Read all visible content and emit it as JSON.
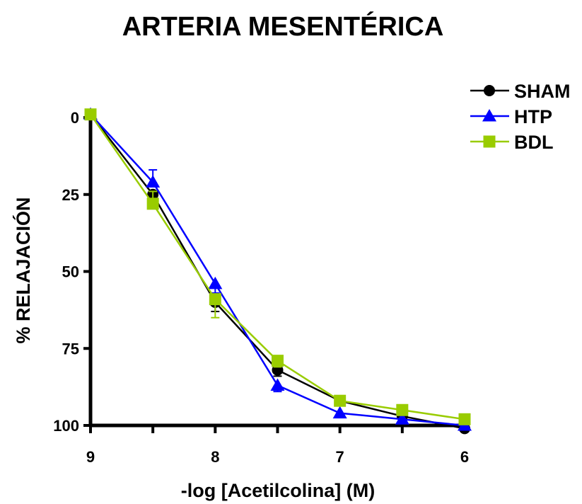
{
  "chart_data": {
    "type": "line",
    "title": "ARTERIA MESENTÉRICA",
    "xlabel": "-log [Acetilcolina] (M)",
    "ylabel": "% RELAJACIÓN",
    "x_ticks": [
      "9",
      "8",
      "7",
      "6"
    ],
    "y_ticks": [
      "0",
      "25",
      "50",
      "75",
      "100"
    ],
    "xlim": [
      9,
      6
    ],
    "ylim": [
      0,
      100
    ],
    "y_inverted": true,
    "grid": false,
    "legend_position": "top-right",
    "x": [
      9,
      8.5,
      8,
      7.5,
      7,
      6.5,
      6
    ],
    "series": [
      {
        "name": "SHAM",
        "marker": "circle",
        "color": "#000000",
        "values": [
          -1,
          25,
          60,
          82,
          92,
          97,
          101
        ],
        "error": [
          0,
          0,
          3,
          2,
          1,
          0,
          0
        ]
      },
      {
        "name": "HTP",
        "marker": "triangle",
        "color": "#0000ff",
        "values": [
          -1,
          21,
          54,
          87,
          96,
          98,
          100
        ],
        "error": [
          0,
          4,
          3,
          2,
          0,
          0,
          0
        ]
      },
      {
        "name": "BDL",
        "marker": "square",
        "color": "#99cc00",
        "values": [
          -1,
          28,
          59,
          79,
          92,
          95,
          98
        ],
        "error": [
          0,
          4,
          6,
          2,
          0,
          0,
          0
        ]
      }
    ]
  }
}
